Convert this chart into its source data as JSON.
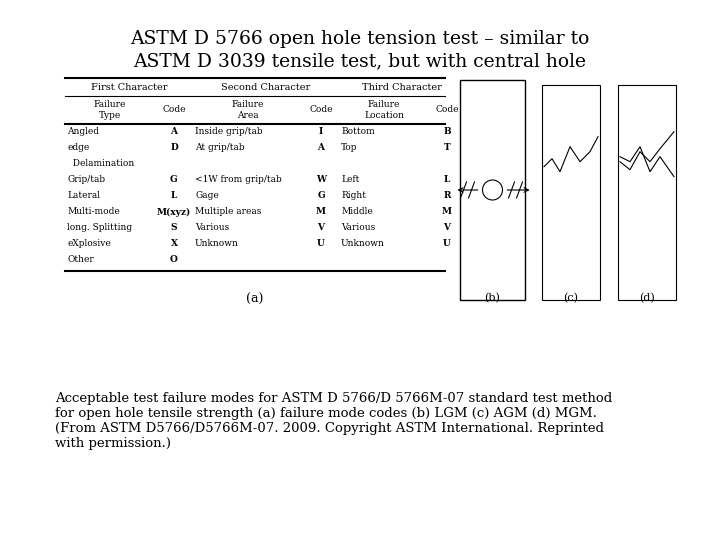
{
  "title_line1": "ASTM D 5766 open hole tension test – similar to",
  "title_line2": "ASTM D 3039 tensile test, but with central hole",
  "caption_line1": "Acceptable test failure modes for ASTM D 5766/D 5766M-07 standard test method",
  "caption_line2": "for open hole tensile strength (a) failure mode codes (b) LGM (c) AGM (d) MGM.",
  "caption_line3": "(From ASTM D5766/D5766M-07. 2009. Copyright ASTM International. Reprinted",
  "caption_line4": "with permission.)",
  "bg_color": "#ffffff",
  "title_fontsize": 13.5,
  "caption_fontsize": 9.5,
  "table_header1": "First Character",
  "table_header2": "Second Character",
  "table_header3": "Third Character",
  "col_headers": [
    "Failure\nType",
    "Code",
    "Failure\nArea",
    "Code",
    "Failure\nLocation",
    "Code"
  ],
  "table_rows": [
    [
      "Angled",
      "A",
      "Inside grip/tab",
      "I",
      "Bottom",
      "B"
    ],
    [
      "edge",
      "D",
      "At grip/tab",
      "A",
      "Top",
      "T"
    ],
    [
      "  Delamination",
      "",
      "",
      "",
      "",
      ""
    ],
    [
      "Grip/tab",
      "G",
      "<1W from grip/tab",
      "W",
      "Left",
      "L"
    ],
    [
      "Lateral",
      "L",
      "Gage",
      "G",
      "Right",
      "R"
    ],
    [
      "Multi-mode",
      "M(xyz)",
      "Multiple areas",
      "M",
      "Middle",
      "M"
    ],
    [
      "long. Splitting",
      "S",
      "Various",
      "V",
      "Various",
      "V"
    ],
    [
      "eXplosive",
      "X",
      "Unknown",
      "U",
      "Unknown",
      "U"
    ],
    [
      "Other",
      "O",
      "",
      "",
      "",
      ""
    ]
  ],
  "sub_label_a": "(a)",
  "sub_label_b": "(b)",
  "sub_label_c": "(c)",
  "sub_label_d": "(d)"
}
